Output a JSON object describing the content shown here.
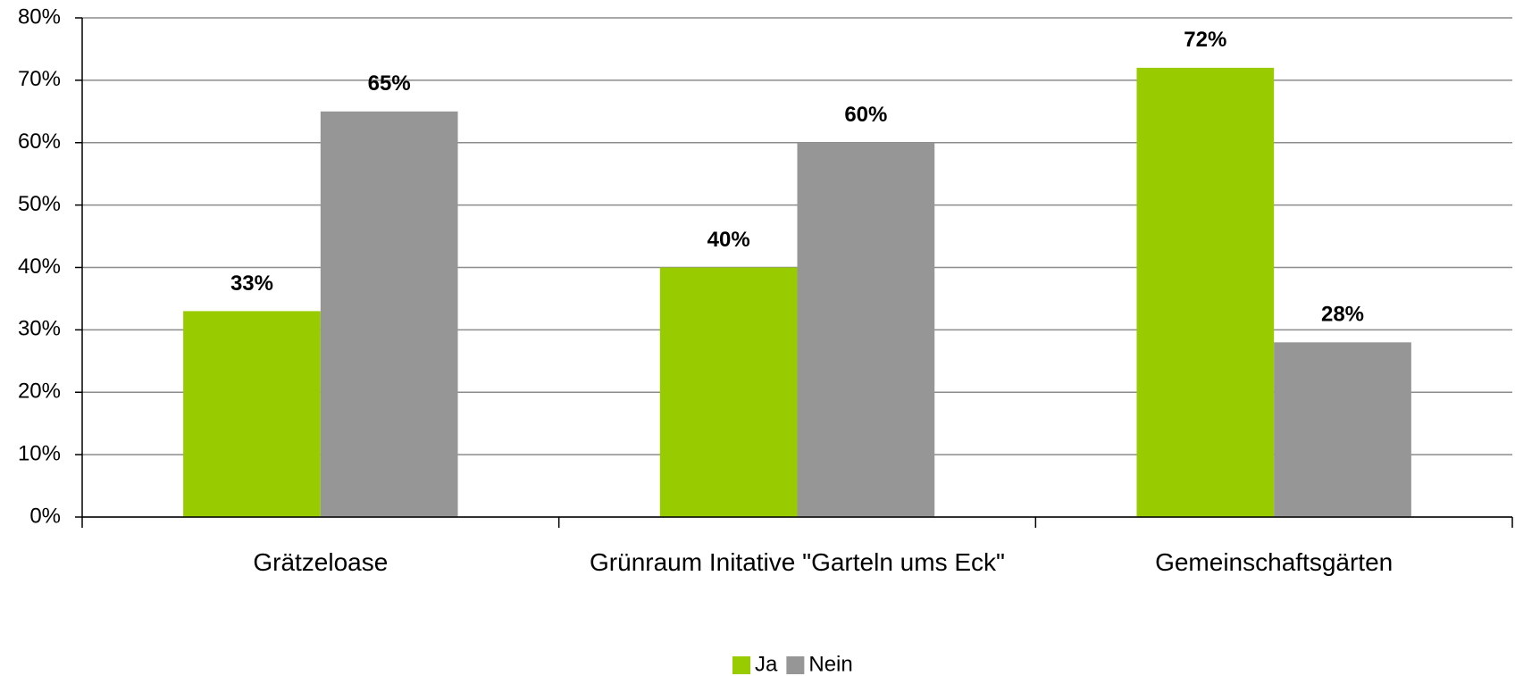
{
  "chart_data": {
    "type": "bar",
    "categories": [
      "Grätzeloase",
      "Grünraum Initative \"Garteln ums Eck\"",
      "Gemeinschaftsgärten"
    ],
    "series": [
      {
        "name": "Ja",
        "color": "#99cc00",
        "values": [
          33,
          40,
          72
        ],
        "value_labels": [
          "33%",
          "40%",
          "72%"
        ]
      },
      {
        "name": "Nein",
        "color": "#969696",
        "values": [
          65,
          60,
          28
        ],
        "value_labels": [
          "65%",
          "60%",
          "28%"
        ]
      }
    ],
    "ylim": [
      0,
      80
    ],
    "yticks": [
      {
        "value": 0,
        "label": "0%"
      },
      {
        "value": 10,
        "label": "10%"
      },
      {
        "value": 20,
        "label": "20%"
      },
      {
        "value": 30,
        "label": "30%"
      },
      {
        "value": 40,
        "label": "40%"
      },
      {
        "value": 50,
        "label": "50%"
      },
      {
        "value": 60,
        "label": "60%"
      },
      {
        "value": 70,
        "label": "70%"
      },
      {
        "value": 80,
        "label": "80%"
      }
    ],
    "grid": true,
    "legend": "bottom"
  }
}
